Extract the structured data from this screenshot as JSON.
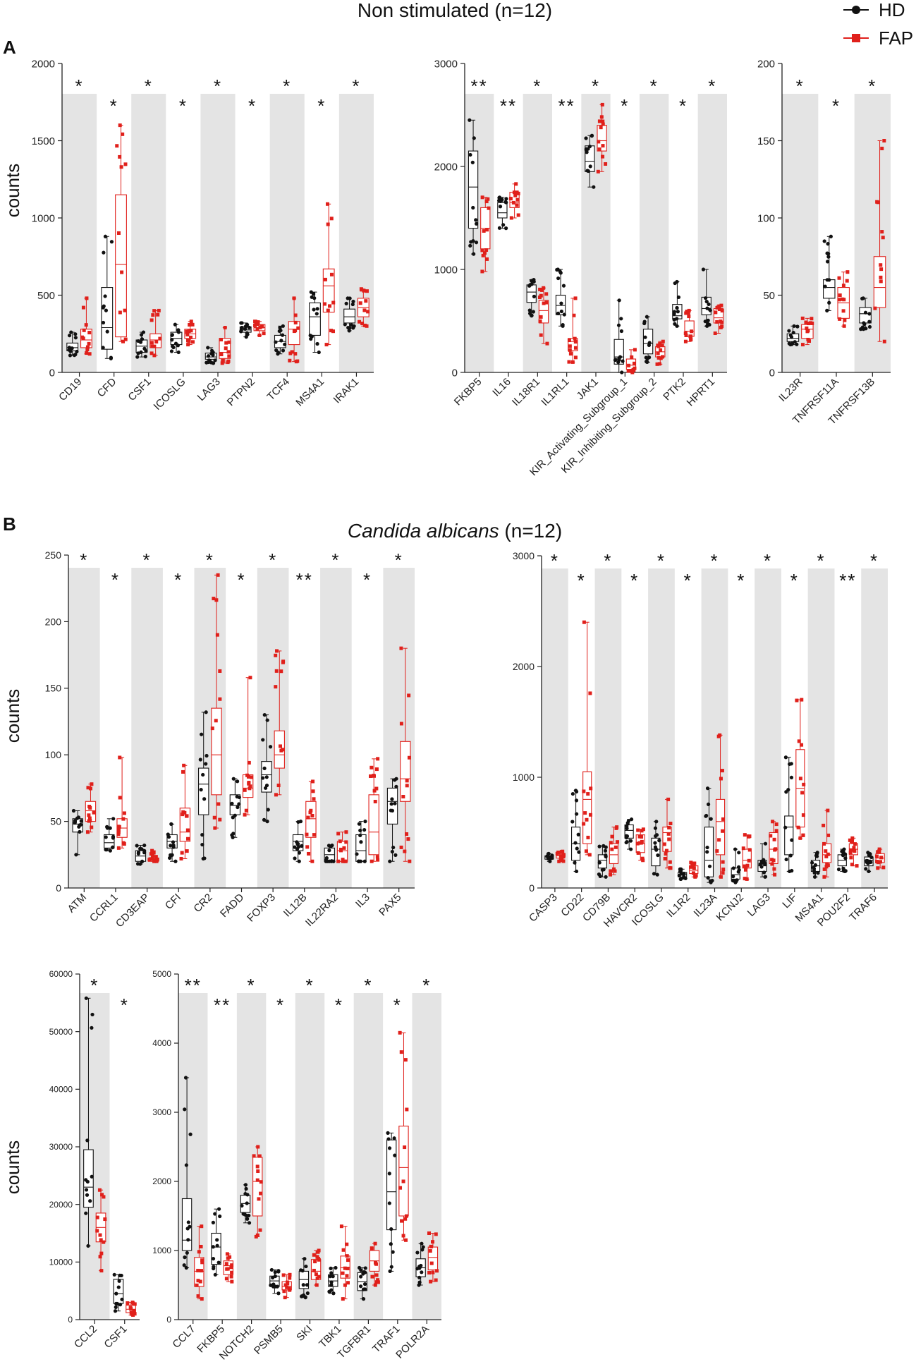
{
  "section_a": {
    "letter": "A",
    "title": "Non stimulated (n=12)"
  },
  "section_b": {
    "letter": "B",
    "title_italic": "Candida albicans",
    "title_suffix": " (n=12)"
  },
  "legend": [
    {
      "label": "HD",
      "color": "#111111",
      "marker": "circle"
    },
    {
      "label": "FAP",
      "color": "#e0201b",
      "marker": "square"
    }
  ],
  "colors": {
    "hd": "#111111",
    "fap": "#e0201b",
    "shade": "#e4e4e4"
  },
  "y_axis_title": "counts",
  "chart_data": [
    {
      "type": "boxplot",
      "section": "A",
      "ylabel": "counts",
      "ylim": [
        0,
        2000
      ],
      "ticks": [
        0,
        500,
        1000,
        1500,
        2000
      ],
      "categories": [
        "CD19",
        "CFD",
        "CSF1",
        "ICOSLG",
        "LAG3",
        "PTPN2",
        "TCF4",
        "MS4A1",
        "IRAK1"
      ],
      "significance": [
        "*",
        "*",
        "*",
        "*",
        "*",
        "*",
        "*",
        "*",
        "*"
      ],
      "series": [
        {
          "name": "HD",
          "boxes": [
            [
              110,
              140,
              160,
              190,
              260
            ],
            [
              90,
              150,
              290,
              550,
              880
            ],
            [
              100,
              130,
              170,
              210,
              260
            ],
            [
              130,
              180,
              220,
              260,
              310
            ],
            [
              60,
              85,
              100,
              125,
              160
            ],
            [
              230,
              260,
              275,
              295,
              320
            ],
            [
              120,
              160,
              200,
              240,
              300
            ],
            [
              130,
              240,
              360,
              450,
              520
            ],
            [
              270,
              320,
              360,
              410,
              480
            ]
          ]
        },
        {
          "name": "FAP",
          "boxes": [
            [
              120,
              160,
              210,
              280,
              480
            ],
            [
              200,
              230,
              700,
              1150,
              1600
            ],
            [
              110,
              160,
              210,
              250,
              400
            ],
            [
              180,
              220,
              250,
              280,
              330
            ],
            [
              60,
              90,
              130,
              220,
              290
            ],
            [
              240,
              270,
              290,
              310,
              330
            ],
            [
              70,
              180,
              280,
              330,
              480
            ],
            [
              180,
              390,
              560,
              670,
              1090
            ],
            [
              300,
              360,
              420,
              480,
              540
            ]
          ]
        }
      ]
    },
    {
      "type": "boxplot",
      "section": "A",
      "ylabel": "",
      "ylim": [
        0,
        3000
      ],
      "ticks": [
        0,
        1000,
        2000,
        3000
      ],
      "categories": [
        "FKBP5",
        "IL16",
        "IL18R1",
        "IL1RL1",
        "JAK1",
        "KIR_Activating_Subgroup_1",
        "KIR_Inhibiting_Subgroup_2",
        "PTK2",
        "HPRT1"
      ],
      "significance": [
        "**",
        "**",
        "*",
        "**",
        "*",
        "*",
        "*",
        "*",
        "*"
      ],
      "series": [
        {
          "name": "HD",
          "boxes": [
            [
              1150,
              1400,
              1800,
              2150,
              2450
            ],
            [
              1400,
              1500,
              1550,
              1650,
              1700
            ],
            [
              550,
              680,
              780,
              850,
              900
            ],
            [
              450,
              560,
              650,
              750,
              1000
            ],
            [
              1800,
              1950,
              2050,
              2200,
              2300
            ],
            [
              0,
              80,
              150,
              320,
              700
            ],
            [
              100,
              180,
              280,
              420,
              540
            ],
            [
              450,
              520,
              550,
              660,
              880
            ],
            [
              450,
              560,
              620,
              730,
              1000
            ]
          ]
        },
        {
          "name": "FAP",
          "boxes": [
            [
              980,
              1200,
              1400,
              1600,
              1700
            ],
            [
              1500,
              1600,
              1650,
              1750,
              1830
            ],
            [
              280,
              480,
              600,
              700,
              820
            ],
            [
              100,
              210,
              300,
              330,
              720
            ],
            [
              1950,
              2150,
              2250,
              2400,
              2600
            ],
            [
              0,
              30,
              70,
              130,
              220
            ],
            [
              80,
              150,
              200,
              250,
              300
            ],
            [
              300,
              350,
              400,
              500,
              600
            ],
            [
              380,
              480,
              530,
              620,
              650
            ]
          ]
        }
      ]
    },
    {
      "type": "boxplot",
      "section": "A",
      "ylabel": "",
      "ylim": [
        0,
        200
      ],
      "ticks": [
        0,
        50,
        100,
        150,
        200
      ],
      "categories": [
        "IL23R",
        "TNFRSF11A",
        "TNFRSF13B"
      ],
      "significance": [
        "*",
        "*",
        "*"
      ],
      "series": [
        {
          "name": "HD",
          "boxes": [
            [
              18,
              20,
              22,
              25,
              30
            ],
            [
              40,
              48,
              55,
              60,
              88
            ],
            [
              28,
              32,
              38,
              42,
              48
            ]
          ]
        },
        {
          "name": "FAP",
          "boxes": [
            [
              18,
              22,
              28,
              31,
              35
            ],
            [
              30,
              35,
              45,
              55,
              65
            ],
            [
              20,
              42,
              55,
              75,
              150
            ]
          ]
        }
      ]
    },
    {
      "type": "boxplot",
      "section": "B",
      "ylabel": "counts",
      "ylim": [
        0,
        250
      ],
      "ticks": [
        0,
        50,
        100,
        150,
        200,
        250
      ],
      "categories": [
        "ATM",
        "CCRL1",
        "CD3EAP",
        "CFI",
        "CR2",
        "FADD",
        "FOXP3",
        "IL12B",
        "IL22RA2",
        "IL3",
        "PAX5"
      ],
      "significance": [
        "*",
        "*",
        "*",
        "*",
        "*",
        "*",
        "*",
        "**",
        "*",
        "*",
        "*"
      ],
      "series": [
        {
          "name": "HD",
          "boxes": [
            [
              25,
              42,
              48,
              52,
              58
            ],
            [
              28,
              30,
              34,
              40,
              52
            ],
            [
              18,
              20,
              24,
              28,
              32
            ],
            [
              20,
              30,
              35,
              40,
              48
            ],
            [
              22,
              55,
              78,
              90,
              132
            ],
            [
              38,
              55,
              62,
              70,
              82
            ],
            [
              50,
              72,
              85,
              95,
              130
            ],
            [
              20,
              28,
              35,
              40,
              50
            ],
            [
              20,
              20,
              25,
              30,
              32
            ],
            [
              20,
              20,
              28,
              40,
              50
            ],
            [
              20,
              48,
              65,
              75,
              82
            ]
          ]
        },
        {
          "name": "FAP",
          "boxes": [
            [
              42,
              50,
              58,
              65,
              78
            ],
            [
              30,
              38,
              45,
              52,
              98
            ],
            [
              20,
              20,
              22,
              22,
              28
            ],
            [
              22,
              35,
              42,
              60,
              92
            ],
            [
              45,
              70,
              100,
              135,
              235
            ],
            [
              55,
              68,
              75,
              85,
              158
            ],
            [
              70,
              90,
              100,
              118,
              178
            ],
            [
              20,
              38,
              52,
              65,
              80
            ],
            [
              20,
              20,
              28,
              35,
              42
            ],
            [
              20,
              25,
              42,
              70,
              97
            ],
            [
              20,
              65,
              82,
              110,
              180
            ]
          ]
        }
      ]
    },
    {
      "type": "boxplot",
      "section": "B",
      "ylabel": "",
      "ylim": [
        0,
        3000
      ],
      "ticks": [
        0,
        1000,
        2000,
        3000
      ],
      "categories": [
        "CASP3",
        "CD22",
        "CD79B",
        "HAVCR2",
        "ICOSLG",
        "IL1R2",
        "IL23A",
        "KCNJ2",
        "LAG3",
        "LIF",
        "MS4A1",
        "POU2F2",
        "TRAF6"
      ],
      "significance": [
        "*",
        "*",
        "*",
        "*",
        "*",
        "*",
        "*",
        "*",
        "*",
        "*",
        "*",
        "**",
        "*"
      ],
      "series": [
        {
          "name": "HD",
          "boxes": [
            [
              240,
              260,
              280,
              290,
              310
            ],
            [
              150,
              250,
              400,
              550,
              880
            ],
            [
              100,
              180,
              250,
              300,
              380
            ],
            [
              350,
              450,
              520,
              570,
              620
            ],
            [
              120,
              200,
              350,
              450,
              600
            ],
            [
              80,
              100,
              120,
              140,
              170
            ],
            [
              50,
              100,
              250,
              550,
              900
            ],
            [
              50,
              80,
              120,
              180,
              350
            ],
            [
              100,
              150,
              200,
              250,
              400
            ],
            [
              150,
              300,
              550,
              650,
              1180
            ],
            [
              100,
              150,
              200,
              250,
              320
            ],
            [
              150,
              200,
              250,
              300,
              350
            ],
            [
              150,
              200,
              250,
              280,
              320
            ]
          ]
        },
        {
          "name": "FAP",
          "boxes": [
            [
              240,
              270,
              290,
              310,
              330
            ],
            [
              300,
              400,
              800,
              1050,
              2400
            ],
            [
              120,
              220,
              300,
              400,
              550
            ],
            [
              250,
              320,
              400,
              480,
              530
            ],
            [
              180,
              330,
              500,
              550,
              800
            ],
            [
              100,
              130,
              160,
              200,
              230
            ],
            [
              100,
              300,
              600,
              800,
              1380
            ],
            [
              80,
              180,
              250,
              350,
              480
            ],
            [
              120,
              220,
              350,
              500,
              600
            ],
            [
              450,
              550,
              900,
              1250,
              1700
            ],
            [
              100,
              230,
              300,
              400,
              700
            ],
            [
              200,
              300,
              350,
              400,
              450
            ],
            [
              180,
              230,
              270,
              310,
              350
            ]
          ]
        }
      ]
    },
    {
      "type": "boxplot",
      "section": "B",
      "ylabel": "counts",
      "ylim": [
        0,
        60000
      ],
      "ticks": [
        0,
        10000,
        20000,
        30000,
        40000,
        50000,
        60000
      ],
      "categories": [
        "CCL2",
        "CSF1"
      ],
      "significance": [
        "*",
        "*"
      ],
      "series": [
        {
          "name": "HD",
          "boxes": [
            [
              12800,
              19500,
              23000,
              29500,
              55800
            ],
            [
              1500,
              2800,
              4500,
              7000,
              7800
            ]
          ]
        },
        {
          "name": "FAP",
          "boxes": [
            [
              8500,
              13500,
              16000,
              18500,
              22500
            ],
            [
              800,
              1200,
              1800,
              2500,
              3000
            ]
          ]
        }
      ]
    },
    {
      "type": "boxplot",
      "section": "B",
      "ylabel": "",
      "ylim": [
        0,
        5000
      ],
      "ticks": [
        0,
        1000,
        2000,
        3000,
        4000,
        5000
      ],
      "categories": [
        "CCL7",
        "FKBP5",
        "NOTCH2",
        "PSMB5",
        "SKI",
        "TBK1",
        "TGFBR1",
        "TRAF1",
        "POLR2A"
      ],
      "significance": [
        "**",
        "**",
        "*",
        "*",
        "*",
        "*",
        "*",
        "*",
        "*"
      ],
      "series": [
        {
          "name": "HD",
          "boxes": [
            [
              750,
              1000,
              1150,
              1750,
              3500
            ],
            [
              650,
              800,
              1050,
              1250,
              1600
            ],
            [
              1400,
              1550,
              1680,
              1800,
              1950
            ],
            [
              380,
              480,
              560,
              630,
              720
            ],
            [
              320,
              450,
              580,
              700,
              880
            ],
            [
              380,
              480,
              560,
              650,
              750
            ],
            [
              300,
              420,
              550,
              680,
              750
            ],
            [
              700,
              1300,
              1850,
              2600,
              2700
            ],
            [
              500,
              620,
              750,
              880,
              1100
            ]
          ]
        },
        {
          "name": "FAP",
          "boxes": [
            [
              300,
              480,
              700,
              900,
              1350
            ],
            [
              550,
              650,
              780,
              850,
              950
            ],
            [
              1200,
              1500,
              2000,
              2350,
              2500
            ],
            [
              320,
              430,
              480,
              550,
              650
            ],
            [
              500,
              580,
              700,
              870,
              1000
            ],
            [
              300,
              600,
              750,
              920,
              1350
            ],
            [
              500,
              700,
              850,
              1000,
              1100
            ],
            [
              1150,
              1500,
              2200,
              2800,
              4150
            ],
            [
              550,
              720,
              900,
              1050,
              1250
            ]
          ]
        }
      ]
    }
  ]
}
